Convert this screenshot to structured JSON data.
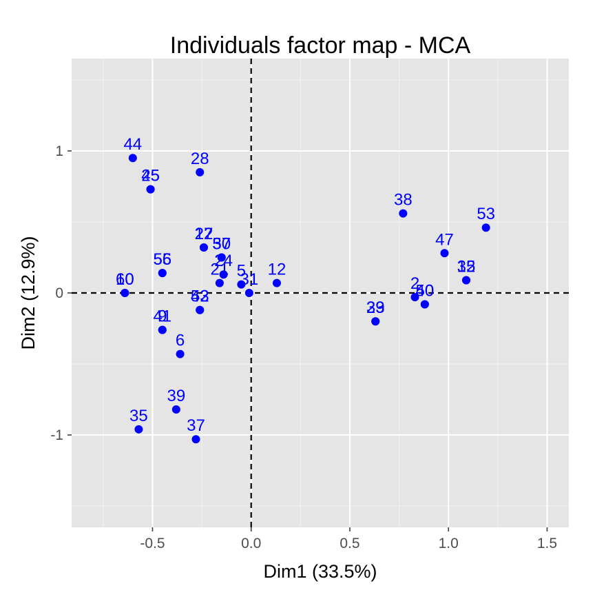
{
  "chart_data": {
    "type": "scatter",
    "title": "Individuals factor map - MCA",
    "xlabel": "Dim1 (33.5%)",
    "ylabel": "Dim2 (12.9%)",
    "xlim": [
      -0.91,
      1.61
    ],
    "ylim": [
      -1.65,
      1.65
    ],
    "x_ticks": [
      -0.5,
      0.0,
      0.5,
      1.0,
      1.5
    ],
    "x_tick_labels": [
      "-0.5",
      "0.0",
      "0.5",
      "1.0",
      "1.5"
    ],
    "y_ticks": [
      -1,
      0,
      1
    ],
    "y_tick_labels": [
      "-1",
      "0",
      "1"
    ],
    "grid": true,
    "reference_lines": {
      "x": 0,
      "y": 0,
      "style": "dashed"
    },
    "point_color": "#0000ff",
    "label_color": "#0000ff",
    "panel_background": "#e5e5e5",
    "points": [
      {
        "label": "44",
        "x": -0.6,
        "y": 0.95
      },
      {
        "label": "28",
        "x": -0.26,
        "y": 0.85
      },
      {
        "label": "25",
        "x": -0.51,
        "y": 0.73
      },
      {
        "label": "45",
        "x": -0.51,
        "y": 0.73
      },
      {
        "label": "38",
        "x": 0.77,
        "y": 0.56
      },
      {
        "label": "53",
        "x": 1.19,
        "y": 0.46
      },
      {
        "label": "17",
        "x": -0.24,
        "y": 0.32
      },
      {
        "label": "22",
        "x": -0.24,
        "y": 0.32
      },
      {
        "label": "47",
        "x": 0.98,
        "y": 0.28
      },
      {
        "label": "57",
        "x": -0.15,
        "y": 0.25
      },
      {
        "label": "30",
        "x": -0.15,
        "y": 0.25
      },
      {
        "label": "55",
        "x": -0.45,
        "y": 0.14
      },
      {
        "label": "56",
        "x": -0.45,
        "y": 0.14
      },
      {
        "label": "15",
        "x": 1.09,
        "y": 0.09
      },
      {
        "label": "32",
        "x": 1.09,
        "y": 0.09
      },
      {
        "label": "21",
        "x": -0.16,
        "y": 0.07
      },
      {
        "label": "24",
        "x": -0.14,
        "y": 0.13
      },
      {
        "label": "12",
        "x": 0.13,
        "y": 0.07
      },
      {
        "label": "5",
        "x": -0.05,
        "y": 0.06
      },
      {
        "label": "31",
        "x": -0.01,
        "y": 0.0
      },
      {
        "label": "10",
        "x": -0.64,
        "y": 0.0
      },
      {
        "label": "60",
        "x": -0.64,
        "y": 0.0
      },
      {
        "label": "2",
        "x": 0.83,
        "y": -0.03
      },
      {
        "label": "40",
        "x": 0.88,
        "y": -0.08
      },
      {
        "label": "50",
        "x": 0.88,
        "y": -0.08
      },
      {
        "label": "43",
        "x": -0.26,
        "y": -0.12
      },
      {
        "label": "52",
        "x": -0.26,
        "y": -0.12
      },
      {
        "label": "29",
        "x": 0.63,
        "y": -0.2
      },
      {
        "label": "33",
        "x": 0.63,
        "y": -0.2
      },
      {
        "label": "41",
        "x": -0.45,
        "y": -0.26
      },
      {
        "label": "9",
        "x": -0.45,
        "y": -0.26
      },
      {
        "label": "6",
        "x": -0.36,
        "y": -0.43
      },
      {
        "label": "39",
        "x": -0.38,
        "y": -0.82
      },
      {
        "label": "35",
        "x": -0.57,
        "y": -0.96
      },
      {
        "label": "37",
        "x": -0.28,
        "y": -1.03
      }
    ]
  }
}
